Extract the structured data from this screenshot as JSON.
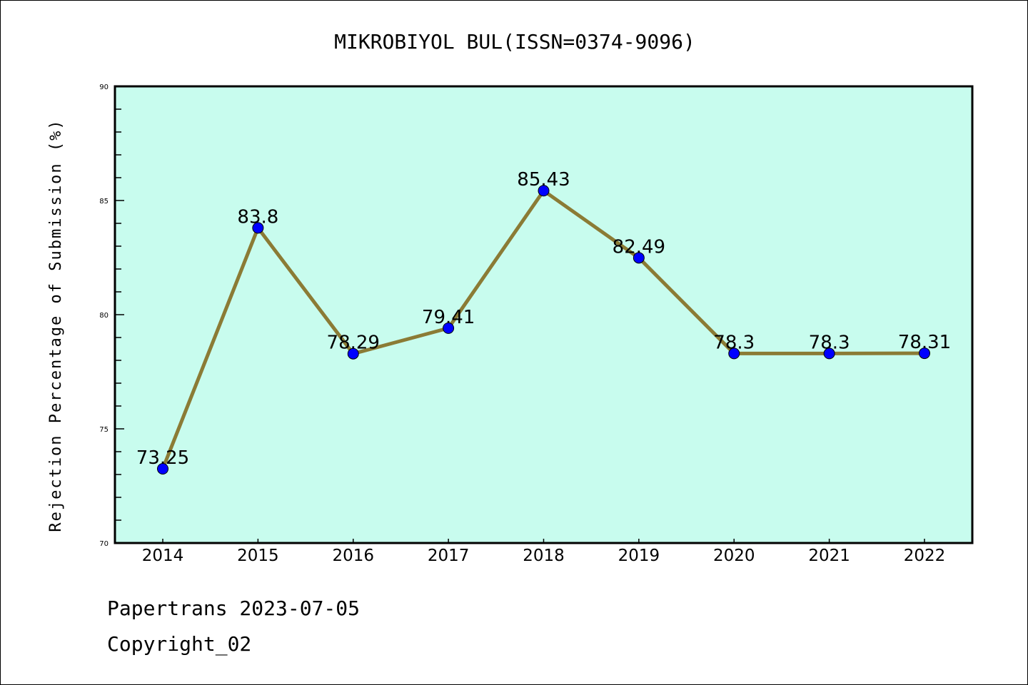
{
  "chart_data": {
    "type": "line",
    "title": "MIKROBIYOL BUL(ISSN=0374-9096)",
    "xlabel": "",
    "ylabel": "Rejection Percentage of Submission (%)",
    "categories": [
      "2014",
      "2015",
      "2016",
      "2017",
      "2018",
      "2019",
      "2020",
      "2021",
      "2022"
    ],
    "values": [
      73.25,
      83.8,
      78.29,
      79.41,
      85.43,
      82.49,
      78.3,
      78.3,
      78.31
    ],
    "data_labels": [
      "73.25",
      "83.8",
      "78.29",
      "79.41",
      "85.43",
      "82.49",
      "78.3",
      "78.3",
      "78.31"
    ],
    "ylim": [
      70,
      90
    ],
    "yticks": [
      "70",
      "75",
      "80",
      "85",
      "90"
    ],
    "grid": false,
    "colors": {
      "background": "#c8fcee",
      "line": "#8b7b35",
      "marker": "#0000ff"
    }
  },
  "footer": {
    "line1": "Papertrans 2023-07-05",
    "line2": "Copyright_02"
  }
}
